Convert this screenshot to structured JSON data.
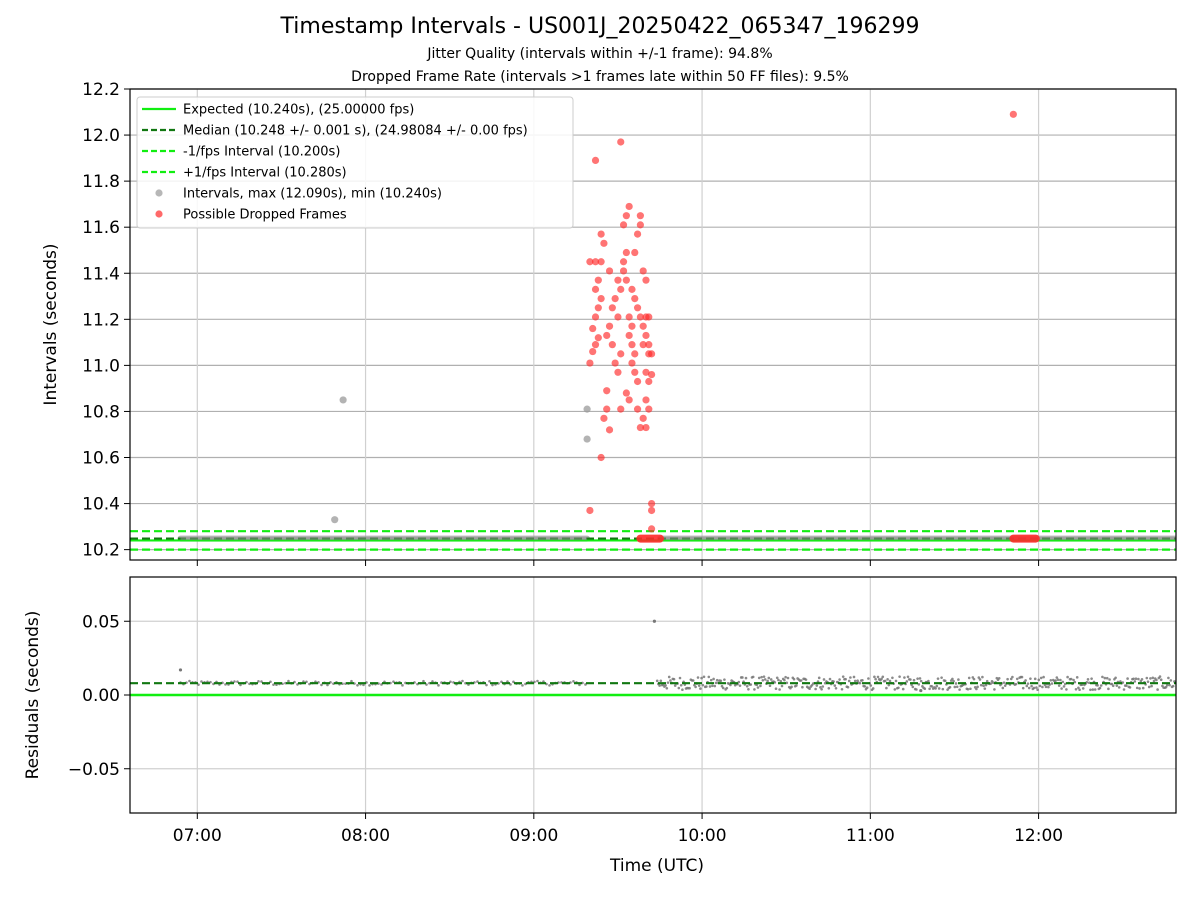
{
  "chart_data": [
    {
      "type": "scatter",
      "title": "Timestamp Intervals - US001J_20250422_065347_196299",
      "subtitle_1": "Jitter Quality (intervals within +/-1 frame): 94.8%",
      "subtitle_2": "Dropped Frame Rate (intervals >1 frames late within 50 FF files): 9.5%",
      "xlabel": "",
      "ylabel": "Intervals (seconds)",
      "xlim": [
        "06:36",
        "12:49"
      ],
      "ylim": [
        10.155,
        12.2
      ],
      "y_ticks": [
        "10.2",
        "10.4",
        "10.6",
        "10.8",
        "11.0",
        "11.2",
        "11.4",
        "11.6",
        "11.8",
        "12.0",
        "12.2"
      ],
      "grid": true,
      "legend_position": "top-left",
      "legend": [
        "Expected (10.240s), (25.00000 fps)",
        "Median (10.248 +/- 0.001 s), (24.98084 +/- 0.00 fps)",
        "-1/fps Interval (10.200s)",
        "+1/fps Interval (10.280s)",
        "Intervals, max (12.090s), min (10.240s)",
        "Possible Dropped Frames"
      ],
      "reference_lines": {
        "expected": 10.24,
        "median": 10.248,
        "minus_1_fps": 10.2,
        "plus_1_fps": 10.28
      },
      "colors": {
        "expected": "#11ee11",
        "median": "#117711",
        "fps_bounds": "#11ee11",
        "intervals": "#999999",
        "dropped": "#ff2a2a"
      },
      "series": [
        {
          "name": "Intervals, max (12.090s), min (10.240s)",
          "baseline_ranges": [
            [
              "06:54",
              "09:19",
              10.248
            ],
            [
              "09:45",
              "12:49",
              10.248
            ]
          ],
          "points": [
            [
              "07:49",
              10.33
            ],
            [
              "07:52",
              10.85
            ],
            [
              "09:19",
              10.81
            ],
            [
              "09:19",
              10.68
            ]
          ]
        },
        {
          "name": "Possible Dropped Frames",
          "clusters": [
            [
              "09:38",
              "09:45",
              10.248
            ],
            [
              "11:51",
              "11:59",
              10.248
            ]
          ],
          "points": [
            [
              "09:20",
              10.37
            ],
            [
              "09:24",
              10.6
            ],
            [
              "09:20",
              11.01
            ],
            [
              "09:21",
              11.06
            ],
            [
              "09:22",
              11.09
            ],
            [
              "09:23",
              11.12
            ],
            [
              "09:21",
              11.16
            ],
            [
              "09:22",
              11.21
            ],
            [
              "09:23",
              11.25
            ],
            [
              "09:24",
              11.29
            ],
            [
              "09:22",
              11.33
            ],
            [
              "09:23",
              11.37
            ],
            [
              "09:20",
              11.45
            ],
            [
              "09:22",
              11.45
            ],
            [
              "09:24",
              11.45
            ],
            [
              "09:25",
              11.53
            ],
            [
              "09:24",
              11.57
            ],
            [
              "09:22",
              11.89
            ],
            [
              "09:31",
              11.97
            ],
            [
              "09:27",
              11.41
            ],
            [
              "09:30",
              11.37
            ],
            [
              "09:31",
              11.33
            ],
            [
              "09:29",
              11.29
            ],
            [
              "09:28",
              11.25
            ],
            [
              "09:30",
              11.21
            ],
            [
              "09:27",
              11.17
            ],
            [
              "09:26",
              11.13
            ],
            [
              "09:28",
              11.09
            ],
            [
              "09:31",
              11.05
            ],
            [
              "09:29",
              11.01
            ],
            [
              "09:30",
              10.97
            ],
            [
              "09:26",
              10.89
            ],
            [
              "09:33",
              10.88
            ],
            [
              "09:26",
              10.81
            ],
            [
              "09:25",
              10.77
            ],
            [
              "09:27",
              10.72
            ],
            [
              "09:31",
              10.81
            ],
            [
              "09:32",
              11.41
            ],
            [
              "09:33",
              11.37
            ],
            [
              "09:32",
              11.45
            ],
            [
              "09:33",
              11.49
            ],
            [
              "09:32",
              11.61
            ],
            [
              "09:33",
              11.65
            ],
            [
              "09:34",
              11.69
            ],
            [
              "09:34",
              11.21
            ],
            [
              "09:35",
              11.17
            ],
            [
              "09:34",
              11.13
            ],
            [
              "09:35",
              11.09
            ],
            [
              "09:36",
              11.05
            ],
            [
              "09:35",
              11.01
            ],
            [
              "09:36",
              10.97
            ],
            [
              "09:37",
              10.93
            ],
            [
              "09:35",
              11.33
            ],
            [
              "09:36",
              11.29
            ],
            [
              "09:37",
              11.25
            ],
            [
              "09:38",
              11.21
            ],
            [
              "09:36",
              11.49
            ],
            [
              "09:37",
              11.57
            ],
            [
              "09:38",
              11.65
            ],
            [
              "09:38",
              11.61
            ],
            [
              "09:39",
              11.41
            ],
            [
              "09:40",
              11.37
            ],
            [
              "09:39",
              11.17
            ],
            [
              "09:40",
              11.13
            ],
            [
              "09:39",
              11.09
            ],
            [
              "09:41",
              11.05
            ],
            [
              "09:42",
              11.05
            ],
            [
              "09:41",
              11.09
            ],
            [
              "09:42",
              10.96
            ],
            [
              "09:40",
              10.97
            ],
            [
              "09:41",
              10.93
            ],
            [
              "09:40",
              10.85
            ],
            [
              "09:41",
              10.81
            ],
            [
              "09:39",
              10.77
            ],
            [
              "09:40",
              10.73
            ],
            [
              "09:38",
              10.73
            ],
            [
              "09:34",
              10.85
            ],
            [
              "09:37",
              10.81
            ],
            [
              "09:41",
              11.21
            ],
            [
              "09:40",
              11.21
            ],
            [
              "09:42",
              10.4
            ],
            [
              "09:42",
              10.37
            ],
            [
              "09:42",
              10.29
            ],
            [
              "11:51",
              12.09
            ]
          ]
        }
      ]
    },
    {
      "type": "scatter",
      "title": "",
      "xlabel": "Time (UTC)",
      "ylabel": "Residuals (seconds)",
      "xlim": [
        "06:36",
        "12:49"
      ],
      "ylim": [
        -0.08,
        0.08
      ],
      "y_ticks": [
        "−0.05",
        "0.00",
        "0.05"
      ],
      "x_ticks": [
        "07:00",
        "08:00",
        "09:00",
        "10:00",
        "11:00",
        "12:00"
      ],
      "grid": true,
      "reference_lines": {
        "zero": 0.0,
        "median_residual": 0.008
      },
      "colors": {
        "zero": "#11ee11",
        "median_residual": "#117711",
        "points": "#777777"
      },
      "series": [
        {
          "name": "",
          "bands": [
            [
              "06:54",
              "09:19",
              0.008,
              0.0015
            ],
            [
              "09:44",
              "12:49",
              0.008,
              0.0045
            ]
          ],
          "points": [
            [
              "06:54",
              0.017
            ],
            [
              "09:43",
              0.05
            ],
            [
              "11:18",
              0.003
            ]
          ]
        }
      ]
    }
  ]
}
